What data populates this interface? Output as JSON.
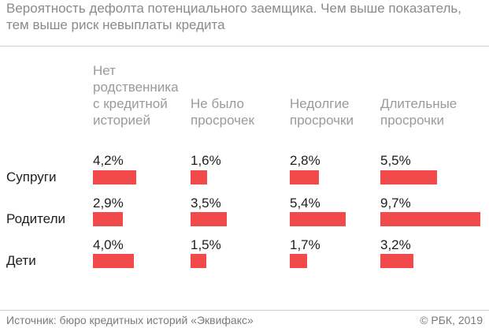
{
  "title": "Вероятность дефолта потенциального заемщика. Чем выше показатель, тем выше риск невыплаты кредита",
  "columns": [
    "Нет\nродственника\nс кредитной\nисторией",
    "Не было\nпросрочек",
    "Недолгие\nпросрочки",
    "Длительные\nпросрочки"
  ],
  "rows": [
    "Супруги",
    "Родители",
    "Дети"
  ],
  "value_labels": [
    [
      "4,2%",
      "1,6%",
      "2,8%",
      "5,5%"
    ],
    [
      "2,9%",
      "3,5%",
      "5,4%",
      "9,7%"
    ],
    [
      "4,0%",
      "1,5%",
      "1,7%",
      "3,2%"
    ]
  ],
  "footer": {
    "source": "Источник: бюро кредитных историй «Эквифакс»",
    "copyright": "© РБК, 2019"
  },
  "chart_data": {
    "type": "bar",
    "title": "Вероятность дефолта потенциального заемщика. Чем выше показатель, тем выше риск невыплаты кредита",
    "categories": [
      "Нет родственника с кредитной историей",
      "Не было просрочек",
      "Недолгие просрочки",
      "Длительные просрочки"
    ],
    "series": [
      {
        "name": "Супруги",
        "values": [
          4.2,
          1.6,
          2.8,
          5.5
        ]
      },
      {
        "name": "Родители",
        "values": [
          2.9,
          3.5,
          5.4,
          9.7
        ]
      },
      {
        "name": "Дети",
        "values": [
          4.0,
          1.5,
          1.7,
          3.2
        ]
      }
    ],
    "unit": "%",
    "bar_color": "#f24a4a"
  }
}
